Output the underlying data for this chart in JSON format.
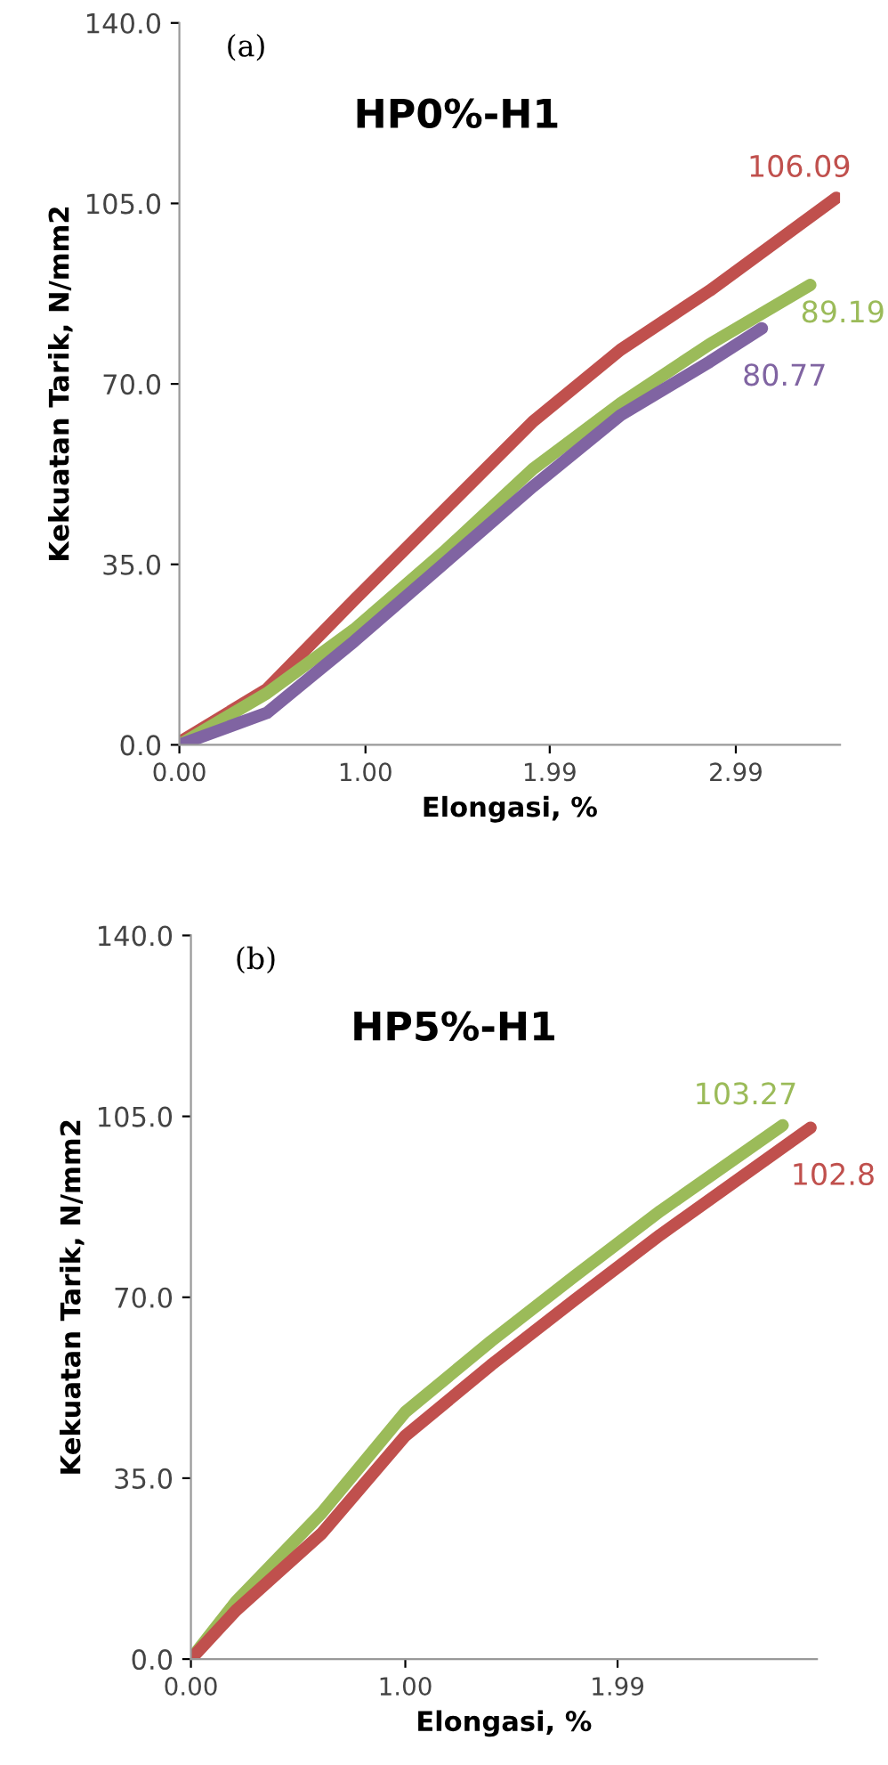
{
  "chart_data": [
    {
      "type": "line",
      "title": "HP0%-H1",
      "xlabel": "Elongasi, %",
      "ylabel": "Kekuatan Tarik, N/mm2",
      "annotations": [
        "(a)"
      ],
      "xlim": [
        0,
        3.55
      ],
      "ylim": [
        0,
        140
      ],
      "xticks": [
        {
          "value": 0,
          "label": "0.00"
        },
        {
          "value": 1.0,
          "label": "1.00"
        },
        {
          "value": 1.99,
          "label": "1.99"
        },
        {
          "value": 2.99,
          "label": "2.99"
        }
      ],
      "yticks": [
        {
          "value": 0,
          "label": "0.0"
        },
        {
          "value": 35,
          "label": "35.0"
        },
        {
          "value": 70,
          "label": "70.0"
        },
        {
          "value": 105,
          "label": "105.0"
        },
        {
          "value": 140,
          "label": "140.0"
        }
      ],
      "series": [
        {
          "color": "#c0504d",
          "x": [
            0,
            0.47,
            0.94,
            1.42,
            1.9,
            2.37,
            2.85,
            3.53
          ],
          "values": [
            0.5,
            10.8,
            28.1,
            45.4,
            62.7,
            76.6,
            88.1,
            106.09
          ],
          "value_labels": [
            null,
            null,
            null,
            null,
            null,
            null,
            null,
            "106.09"
          ]
        },
        {
          "color": "#9bbb59",
          "x": [
            0,
            0.47,
            0.94,
            1.42,
            1.9,
            2.37,
            2.85,
            3.39
          ],
          "values": [
            0,
            10.0,
            22.4,
            37.4,
            53.5,
            66.2,
            77.7,
            89.19
          ],
          "value_labels": [
            null,
            null,
            null,
            null,
            null,
            null,
            null,
            "89.19"
          ]
        },
        {
          "color": "#8064a2",
          "x": [
            0,
            0.47,
            0.94,
            1.42,
            1.9,
            2.37,
            2.85,
            3.13
          ],
          "values": [
            0,
            6.2,
            20.1,
            35.1,
            50.1,
            63.9,
            74.3,
            80.77
          ],
          "value_labels": [
            null,
            null,
            null,
            null,
            null,
            null,
            null,
            "80.77"
          ]
        }
      ]
    },
    {
      "type": "line",
      "title": "HP5%-H1",
      "xlabel": "Elongasi, %",
      "ylabel": "Kekuatan Tarik, N/mm2",
      "annotations": [
        "(b)"
      ],
      "xlim": [
        0,
        2.92
      ],
      "ylim": [
        0,
        140
      ],
      "xticks": [
        {
          "value": 0,
          "label": "0.00"
        },
        {
          "value": 1.0,
          "label": "1.00"
        },
        {
          "value": 1.99,
          "label": "1.99"
        }
      ],
      "yticks": [
        {
          "value": 0,
          "label": "0.0"
        },
        {
          "value": 35,
          "label": "35.0"
        },
        {
          "value": 70,
          "label": "70.0"
        },
        {
          "value": 105,
          "label": "105.0"
        },
        {
          "value": 140,
          "label": "140.0"
        }
      ],
      "series": [
        {
          "color": "#9bbb59",
          "x": [
            0,
            0.21,
            0.61,
            1.0,
            1.4,
            1.79,
            2.19,
            2.76
          ],
          "values": [
            0,
            11.1,
            28.3,
            47.8,
            61.5,
            74.1,
            86.7,
            103.27
          ],
          "value_labels": [
            null,
            null,
            null,
            null,
            null,
            null,
            null,
            "103.27"
          ]
        },
        {
          "color": "#c0504d",
          "x": [
            0,
            0.21,
            0.61,
            1.0,
            1.4,
            1.79,
            2.19,
            2.89
          ],
          "values": [
            0,
            9.4,
            24.3,
            43.2,
            56.9,
            69.5,
            82.1,
            102.8
          ],
          "value_labels": [
            null,
            null,
            null,
            null,
            null,
            null,
            null,
            "102.8"
          ]
        }
      ]
    }
  ]
}
